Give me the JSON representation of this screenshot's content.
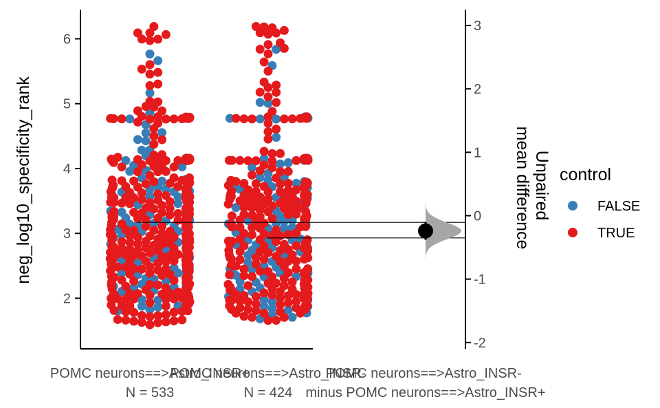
{
  "chart_data": {
    "type": "estimation-swarm",
    "y_left_label": "neg_log10_specificity_rank",
    "y_left_ticks": [
      2,
      3,
      4,
      5,
      6
    ],
    "y_left_range": [
      1.22,
      6.45
    ],
    "y_right_label_lines": [
      "Unpaired",
      "mean difference"
    ],
    "y_right_ticks": [
      -2,
      -1,
      0,
      1,
      2,
      3
    ],
    "y_right_range": [
      -2.1,
      3.25
    ],
    "groups": [
      {
        "label": "POMC neurons==>Astro_INSR+",
        "n_label": "N = 533",
        "mean": 3.17,
        "min": 1.33,
        "max": 6.22,
        "false_min": 1.75,
        "false_max": 6.0
      },
      {
        "label": "POMC neurons==>Astro_INSR-",
        "n_label": "N = 424",
        "mean": 2.93,
        "min": 1.33,
        "max": 6.2,
        "false_min": 1.55,
        "false_max": 5.9
      }
    ],
    "contrast_label": "POMC neurons==>Astro_INSR-\nminus POMC neurons==>Astro_INSR+",
    "effect": {
      "mean_difference": -0.24,
      "ci_low": -0.38,
      "ci_high": -0.1
    },
    "legend": {
      "title": "control",
      "entries": [
        {
          "label": "FALSE",
          "color": "#377eb8"
        },
        {
          "label": "TRUE",
          "color": "#e41a1c"
        }
      ]
    }
  }
}
